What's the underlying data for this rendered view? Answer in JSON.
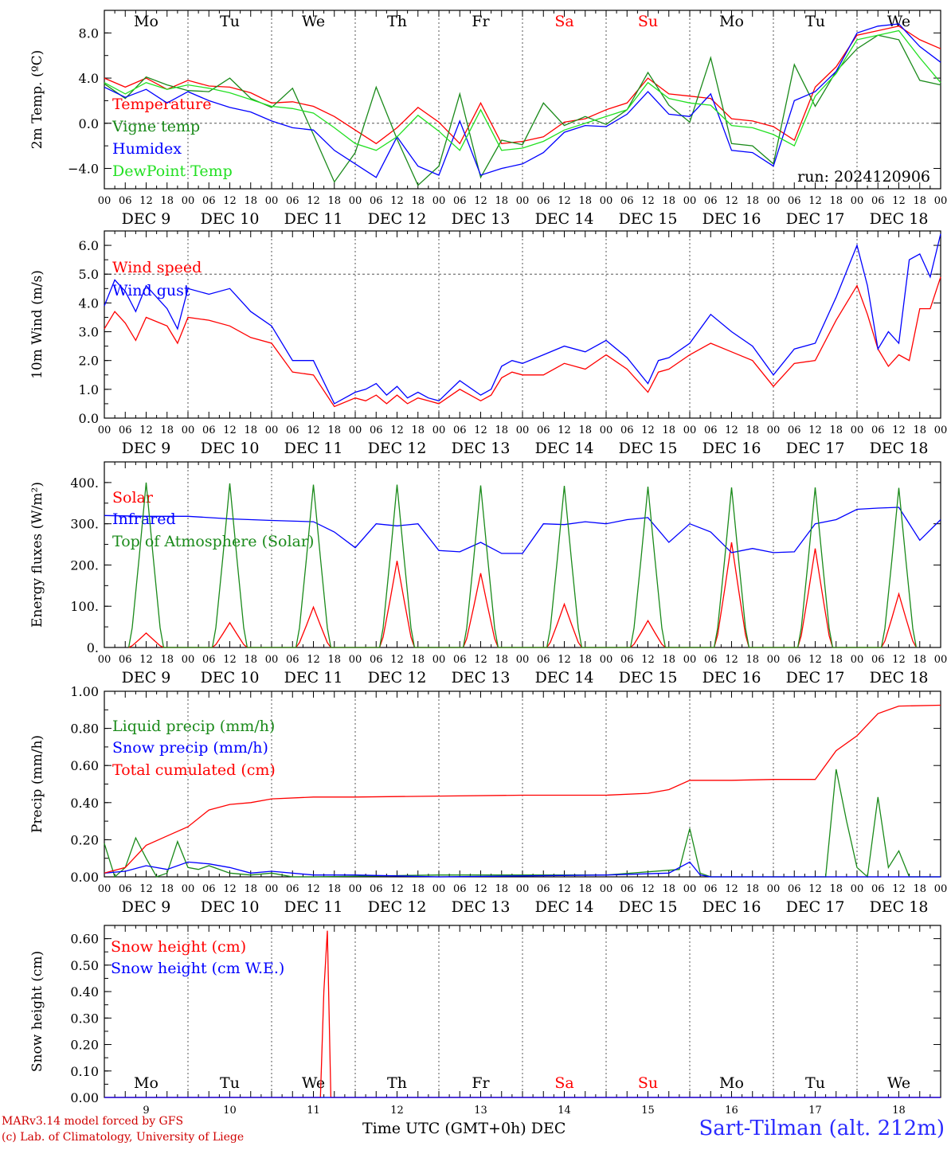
{
  "run_label": "run: 2024120906",
  "footer": {
    "credit_line1": "MARv3.14 model forced by GFS",
    "credit_line2": "(c) Lab. of Climatology, University of Liege",
    "time_axis_label": "Time UTC (GMT+0h) DEC",
    "site": "Sart-Tilman (alt. 212m)"
  },
  "colors": {
    "red": "#ff0000",
    "green": "#1a8a1a",
    "blue": "#0000ff",
    "light_green": "#22e022",
    "weekend": "#ff0000"
  },
  "weekdays": [
    "Mo",
    "Tu",
    "We",
    "Th",
    "Fr",
    "Sa",
    "Su",
    "Mo",
    "Tu",
    "We"
  ],
  "weekend_days": [
    "Sa",
    "Su"
  ],
  "day_numbers": [
    "9",
    "10",
    "11",
    "12",
    "13",
    "14",
    "15",
    "16",
    "17",
    "18"
  ],
  "date_labels": [
    "DEC  9",
    "DEC 10",
    "DEC 11",
    "DEC 12",
    "DEC 13",
    "DEC 14",
    "DEC 15",
    "DEC 16",
    "DEC 17",
    "DEC 18"
  ],
  "hour_ticks": [
    "00",
    "06",
    "12",
    "18"
  ],
  "chart_data": [
    {
      "type": "line",
      "ylabel": "2m Temp. (ºC)",
      "ylim": [
        -5.8,
        10.0
      ],
      "yticks": [
        8.0,
        4.0,
        0.0,
        -4.0
      ],
      "ytick_labels": [
        "8.0",
        "4.0",
        "0.0",
        "−4.0"
      ],
      "dashed_y": [
        0.0
      ],
      "x_unit": "hours since DEC 9 00 UTC",
      "series": [
        {
          "name": "Temperature",
          "color": "#ff0000",
          "x": [
            0,
            6,
            12,
            18,
            24,
            30,
            36,
            42,
            48,
            54,
            60,
            66,
            72,
            78,
            84,
            90,
            96,
            102,
            108,
            114,
            120,
            126,
            132,
            138,
            144,
            150,
            156,
            162,
            168,
            174,
            180,
            186,
            192,
            198,
            204,
            210,
            216,
            222,
            228,
            234,
            240
          ],
          "y": [
            4.0,
            3.2,
            4.0,
            3.0,
            3.8,
            3.3,
            3.2,
            2.7,
            1.8,
            1.9,
            1.5,
            0.6,
            -0.6,
            -1.8,
            -0.4,
            1.4,
            0.1,
            -1.8,
            1.8,
            -1.8,
            -1.6,
            -1.2,
            0.1,
            0.4,
            1.2,
            1.8,
            4.0,
            2.6,
            2.4,
            2.2,
            0.4,
            0.2,
            -0.3,
            -1.5,
            3.2,
            5.0,
            7.8,
            8.2,
            8.6,
            7.4,
            6.6
          ]
        },
        {
          "name": "Vigne temp",
          "color": "#1a8a1a",
          "x": [
            0,
            6,
            12,
            18,
            24,
            30,
            36,
            42,
            48,
            54,
            60,
            66,
            72,
            78,
            84,
            90,
            96,
            102,
            108,
            114,
            120,
            126,
            132,
            138,
            144,
            150,
            156,
            162,
            168,
            174,
            180,
            186,
            192,
            198,
            204,
            210,
            216,
            222,
            228,
            234,
            240
          ],
          "y": [
            3.5,
            2.2,
            4.1,
            3.4,
            2.9,
            2.8,
            4.0,
            2.2,
            1.4,
            3.1,
            -1.0,
            -5.2,
            -2.6,
            3.2,
            -1.4,
            -5.5,
            -3.8,
            2.6,
            -4.8,
            -1.5,
            -1.9,
            1.8,
            -0.2,
            0.6,
            -0.1,
            1.2,
            4.5,
            1.6,
            0.1,
            5.8,
            -1.8,
            -2.0,
            -3.6,
            5.2,
            1.5,
            4.6,
            6.6,
            7.8,
            7.4,
            3.8,
            3.4
          ]
        },
        {
          "name": "Humidex",
          "color": "#0000ff",
          "x": [
            0,
            6,
            12,
            18,
            24,
            30,
            36,
            42,
            48,
            54,
            60,
            66,
            72,
            78,
            84,
            90,
            96,
            102,
            108,
            114,
            120,
            126,
            132,
            138,
            144,
            150,
            156,
            162,
            168,
            174,
            180,
            186,
            192,
            198,
            204,
            210,
            216,
            222,
            228,
            234,
            240
          ],
          "y": [
            3.2,
            2.3,
            3.0,
            1.8,
            2.8,
            2.0,
            1.4,
            1.0,
            0.2,
            -0.4,
            -0.6,
            -2.4,
            -3.6,
            -4.8,
            -1.2,
            -3.8,
            -4.6,
            0.2,
            -4.6,
            -4.0,
            -3.6,
            -2.6,
            -0.8,
            -0.2,
            -0.3,
            0.8,
            2.8,
            0.8,
            0.6,
            2.6,
            -2.4,
            -2.6,
            -3.8,
            2.0,
            2.8,
            4.6,
            8.0,
            8.6,
            8.8,
            6.8,
            5.4
          ]
        },
        {
          "name": "DewPoint Temp",
          "color": "#22e022",
          "x": [
            0,
            6,
            12,
            18,
            24,
            30,
            36,
            42,
            48,
            54,
            60,
            66,
            72,
            78,
            84,
            90,
            96,
            102,
            108,
            114,
            120,
            126,
            132,
            138,
            144,
            150,
            156,
            162,
            168,
            174,
            180,
            186,
            192,
            198,
            204,
            210,
            216,
            222,
            228,
            234,
            240
          ],
          "y": [
            3.6,
            2.6,
            3.6,
            3.0,
            3.4,
            3.1,
            2.7,
            2.1,
            1.5,
            1.3,
            0.9,
            -0.4,
            -1.8,
            -2.4,
            -1.2,
            0.7,
            -0.7,
            -2.4,
            1.2,
            -2.4,
            -2.2,
            -1.6,
            -0.6,
            0.0,
            0.6,
            1.2,
            3.6,
            2.2,
            1.8,
            1.6,
            -0.2,
            -0.4,
            -1.0,
            -2.0,
            2.4,
            4.4,
            7.4,
            7.8,
            8.2,
            5.8,
            3.6
          ]
        }
      ],
      "annotation": "run: 2024120906"
    },
    {
      "type": "line",
      "ylabel": "10m Wind (m/s)",
      "ylim": [
        0.0,
        6.5
      ],
      "yticks": [
        0.0,
        1.0,
        2.0,
        3.0,
        4.0,
        5.0,
        6.0
      ],
      "ytick_labels": [
        "0.0",
        "1.0",
        "2.0",
        "3.0",
        "4.0",
        "5.0",
        "6.0"
      ],
      "dashed_y": [
        5.0
      ],
      "series": [
        {
          "name": "Wind speed",
          "color": "#ff0000",
          "x": [
            0,
            3,
            6,
            9,
            12,
            18,
            21,
            24,
            30,
            36,
            42,
            48,
            54,
            60,
            66,
            72,
            75,
            78,
            81,
            84,
            87,
            90,
            93,
            96,
            102,
            108,
            111,
            114,
            117,
            120,
            126,
            132,
            138,
            144,
            150,
            156,
            159,
            162,
            168,
            174,
            180,
            186,
            192,
            198,
            204,
            210,
            216,
            219,
            222,
            225,
            228,
            231,
            234,
            237,
            240
          ],
          "y": [
            3.1,
            3.7,
            3.3,
            2.7,
            3.5,
            3.2,
            2.6,
            3.5,
            3.4,
            3.2,
            2.8,
            2.6,
            1.6,
            1.5,
            0.4,
            0.7,
            0.6,
            0.8,
            0.5,
            0.8,
            0.5,
            0.7,
            0.6,
            0.5,
            1.0,
            0.6,
            0.8,
            1.4,
            1.6,
            1.5,
            1.5,
            1.9,
            1.7,
            2.2,
            1.7,
            0.9,
            1.6,
            1.7,
            2.2,
            2.6,
            2.3,
            2.0,
            1.1,
            1.9,
            2.0,
            3.4,
            4.6,
            3.6,
            2.4,
            1.8,
            2.2,
            2.0,
            3.8,
            3.8,
            4.9
          ]
        },
        {
          "name": "Wind gust",
          "color": "#0000ff",
          "x": [
            0,
            3,
            6,
            9,
            12,
            18,
            21,
            24,
            30,
            36,
            42,
            48,
            54,
            60,
            66,
            72,
            75,
            78,
            81,
            84,
            87,
            90,
            93,
            96,
            102,
            108,
            111,
            114,
            117,
            120,
            126,
            132,
            138,
            144,
            150,
            156,
            159,
            162,
            168,
            174,
            180,
            186,
            192,
            198,
            204,
            210,
            216,
            219,
            222,
            225,
            228,
            231,
            234,
            237,
            240
          ],
          "y": [
            3.9,
            4.8,
            4.4,
            3.7,
            4.6,
            3.8,
            3.1,
            4.5,
            4.3,
            4.5,
            3.7,
            3.2,
            2.0,
            2.0,
            0.5,
            0.9,
            1.0,
            1.2,
            0.8,
            1.1,
            0.7,
            0.9,
            0.7,
            0.6,
            1.3,
            0.8,
            1.0,
            1.8,
            2.0,
            1.9,
            2.2,
            2.5,
            2.3,
            2.7,
            2.1,
            1.2,
            2.0,
            2.1,
            2.6,
            3.6,
            3.0,
            2.5,
            1.5,
            2.4,
            2.6,
            4.2,
            6.0,
            4.6,
            2.4,
            3.0,
            2.6,
            5.5,
            5.7,
            4.9,
            6.4
          ]
        }
      ]
    },
    {
      "type": "line",
      "ylabel": "Energy fluxes (W/m²)",
      "ylim": [
        0,
        450
      ],
      "yticks": [
        0,
        100,
        200,
        300,
        400
      ],
      "ytick_labels": [
        "0.",
        "100.",
        "200.",
        "300.",
        "400."
      ],
      "series": [
        {
          "name": "Solar",
          "color": "#ff0000",
          "daily_peak_values": [
            35,
            60,
            98,
            210,
            180,
            105,
            65,
            255,
            240,
            130
          ]
        },
        {
          "name": "Infrared",
          "color": "#0000ff",
          "x": [
            0,
            12,
            24,
            36,
            48,
            60,
            66,
            72,
            78,
            84,
            90,
            96,
            102,
            108,
            114,
            120,
            126,
            132,
            138,
            144,
            150,
            156,
            162,
            168,
            174,
            180,
            186,
            192,
            198,
            204,
            210,
            216,
            222,
            228,
            234,
            240
          ],
          "y": [
            320,
            318,
            318,
            312,
            308,
            305,
            280,
            242,
            300,
            295,
            300,
            235,
            232,
            255,
            228,
            228,
            300,
            298,
            305,
            300,
            310,
            315,
            255,
            300,
            280,
            230,
            240,
            230,
            232,
            300,
            310,
            335,
            338,
            340,
            260,
            310
          ]
        },
        {
          "name": "Top of Atmosphere (Solar)",
          "color": "#1a8a1a",
          "daily_peak_values": [
            400,
            398,
            395,
            395,
            393,
            392,
            390,
            388,
            388,
            387
          ]
        }
      ]
    },
    {
      "type": "line",
      "ylabel": "Precip (mm/h)",
      "ylim": [
        0.0,
        1.0
      ],
      "yticks": [
        0.0,
        0.2,
        0.4,
        0.6,
        0.8,
        1.0
      ],
      "ytick_labels": [
        "0.00",
        "0.20",
        "0.40",
        "0.60",
        "0.80",
        "1.00"
      ],
      "series": [
        {
          "name": "Liquid precip (mm/h)",
          "color": "#1a8a1a",
          "x": [
            0,
            3,
            6,
            9,
            12,
            15,
            18,
            21,
            24,
            27,
            30,
            36,
            42,
            48,
            54,
            60,
            96,
            144,
            165,
            168,
            171,
            174,
            177,
            180,
            204,
            207,
            210,
            213,
            216,
            219,
            222,
            225,
            228,
            231,
            234,
            237,
            240
          ],
          "y": [
            0.18,
            0.0,
            0.05,
            0.21,
            0.1,
            0.0,
            0.02,
            0.19,
            0.05,
            0.04,
            0.06,
            0.02,
            0.01,
            0.02,
            0.0,
            0.0,
            0.01,
            0.01,
            0.04,
            0.26,
            0.02,
            0.0,
            0.0,
            0.0,
            0.0,
            0.0,
            0.58,
            0.3,
            0.05,
            0.0,
            0.43,
            0.05,
            0.14,
            0.0,
            0.0,
            0.0,
            0.0
          ]
        },
        {
          "name": "Snow precip (mm/h)",
          "color": "#0000ff",
          "x": [
            0,
            6,
            12,
            18,
            24,
            30,
            36,
            42,
            48,
            60,
            72,
            96,
            144,
            162,
            168,
            171,
            174,
            240
          ],
          "y": [
            0.02,
            0.03,
            0.06,
            0.04,
            0.08,
            0.07,
            0.05,
            0.02,
            0.03,
            0.01,
            0.01,
            0.0,
            0.01,
            0.02,
            0.08,
            0.01,
            0.0,
            0.0
          ]
        },
        {
          "name": "Total cumulated (cm)",
          "color": "#ff0000",
          "x": [
            0,
            6,
            12,
            18,
            24,
            30,
            36,
            42,
            48,
            60,
            72,
            96,
            120,
            144,
            156,
            162,
            168,
            180,
            192,
            204,
            210,
            216,
            222,
            228,
            240
          ],
          "y": [
            0.02,
            0.05,
            0.17,
            0.22,
            0.27,
            0.36,
            0.39,
            0.4,
            0.42,
            0.43,
            0.43,
            0.435,
            0.44,
            0.44,
            0.45,
            0.47,
            0.52,
            0.52,
            0.525,
            0.525,
            0.68,
            0.76,
            0.88,
            0.92,
            0.925
          ]
        }
      ]
    },
    {
      "type": "line",
      "ylabel": "Snow height (cm)",
      "ylim": [
        0.0,
        0.65
      ],
      "yticks": [
        0.0,
        0.1,
        0.2,
        0.3,
        0.4,
        0.5,
        0.6
      ],
      "ytick_labels": [
        "0.00",
        "0.10",
        "0.20",
        "0.30",
        "0.40",
        "0.50",
        "0.60"
      ],
      "series": [
        {
          "name": "Snow height (cm)",
          "color": "#ff0000",
          "x": [
            0,
            62,
            63,
            64,
            65,
            240
          ],
          "y": [
            0,
            0,
            0.4,
            0.63,
            0,
            0
          ]
        },
        {
          "name": "Snow height (cm W.E.)",
          "color": "#0000ff",
          "x": [
            0,
            240
          ],
          "y": [
            0,
            0
          ]
        }
      ]
    }
  ]
}
